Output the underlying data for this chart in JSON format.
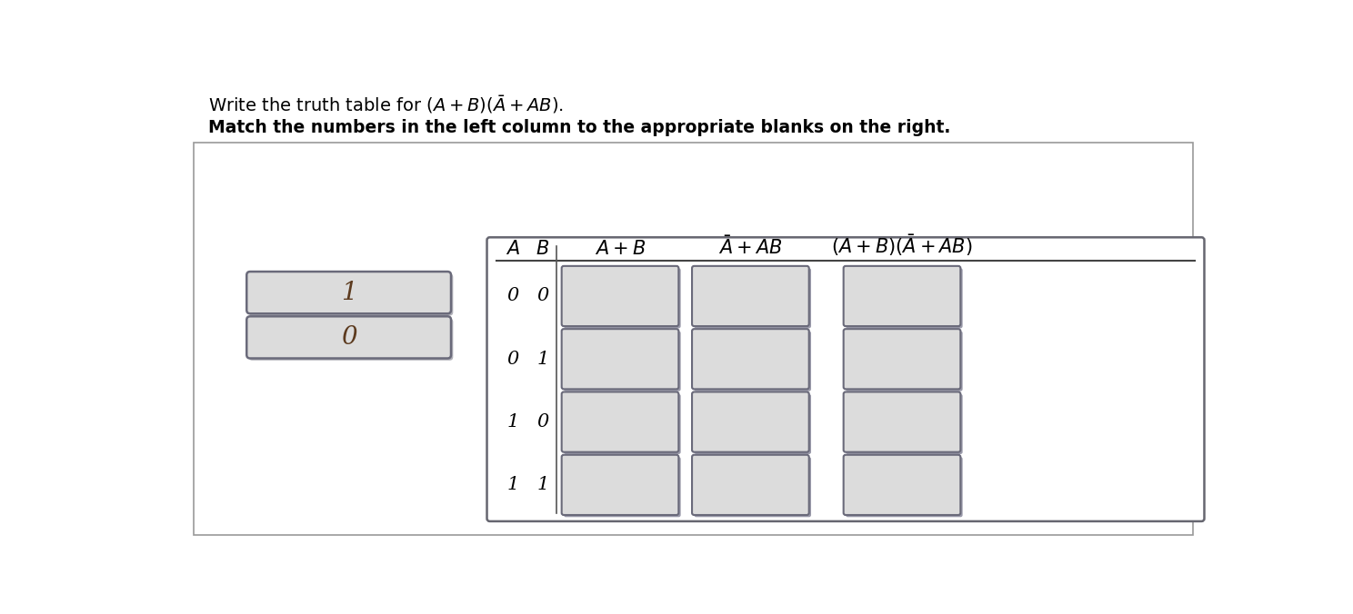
{
  "title_text": "Write the truth table for $(A + B)(\\bar{A} + AB)$.",
  "subtitle_text": "Match the numbers in the left column to the appropriate blanks on the right.",
  "left_boxes": [
    "1",
    "0"
  ],
  "ab_values": [
    [
      "0",
      "0"
    ],
    [
      "0",
      "1"
    ],
    [
      "1",
      "0"
    ],
    [
      "1",
      "1"
    ]
  ],
  "col_headers_AB": [
    "$A$",
    "$B$"
  ],
  "col_header_ApB": "$A+B$",
  "col_header_AbarAB": "$\\bar{A}+AB$",
  "col_header_full": "$(A+B)(\\bar{A}+AB)$",
  "bg_color": "#ffffff",
  "box_fill": "#dcdcdc",
  "box_edge": "#6a6a7a",
  "outer_border_color": "#999999",
  "text_color": "#000000",
  "title_fontsize": 14,
  "subtitle_fontsize": 13.5,
  "header_fontsize": 15,
  "value_fontsize": 15,
  "left_box_text_color": "#5c3a1e"
}
